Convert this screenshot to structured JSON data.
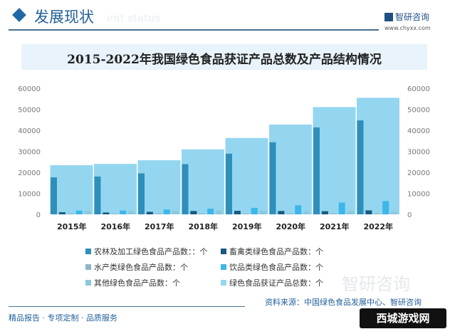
{
  "header": {
    "title": "发展现状",
    "subtitle": "ent status",
    "logo": "智研咨询",
    "url": "www.chyxx.com"
  },
  "chart_data": {
    "type": "bar",
    "title": "2015-2022年我国绿色食品获证产品总数及产品结构情况",
    "categories": [
      "2015年",
      "2016年",
      "2017年",
      "2018年",
      "2019年",
      "2020年",
      "2021年",
      "2022年"
    ],
    "ylim": [
      0,
      60000
    ],
    "yticks": [
      "0",
      "10000",
      "20000",
      "30000",
      "40000",
      "50000",
      "60000"
    ],
    "legend_position": "bottom",
    "total": {
      "name": "绿色食品获证产品总数：个",
      "color": "#94d6f0",
      "values": [
        23386,
        24027,
        25746,
        30932,
        36345,
        42739,
        51071,
        55482
      ]
    },
    "series": [
      {
        "name": "农林及加工绿色食品产品数：：个",
        "color": "#2f8fbb",
        "values": [
          17600,
          18000,
          19500,
          23900,
          28900,
          34300,
          41400,
          44700
        ]
      },
      {
        "name": "畜禽类绿色食品产品数：个",
        "color": "#1a5a7e",
        "values": [
          1000,
          900,
          1200,
          1600,
          1700,
          1600,
          1500,
          1900
        ]
      },
      {
        "name": "水产类绿色食品产品数：个",
        "color": "#8eb4c4",
        "values": [
          400,
          300,
          400,
          400,
          400,
          400,
          400,
          400
        ]
      },
      {
        "name": "饮品类绿色食品产品数：个",
        "color": "#3db6e9",
        "values": [
          1800,
          1800,
          2300,
          2700,
          3100,
          4300,
          5600,
          6300
        ]
      },
      {
        "name": "其他绿色食品产品数：个",
        "color": "#8cc8dc",
        "values": [
          1500,
          1600,
          1700,
          1800,
          1700,
          1500,
          1500,
          1400
        ]
      }
    ]
  },
  "footer": {
    "tagline": "精品报告 · 专项定制 · 品质服务",
    "source": "资料来源：中国绿色食品发展中心、智研咨询",
    "watermark": "智研咨询",
    "badge": "西城游戏网"
  }
}
